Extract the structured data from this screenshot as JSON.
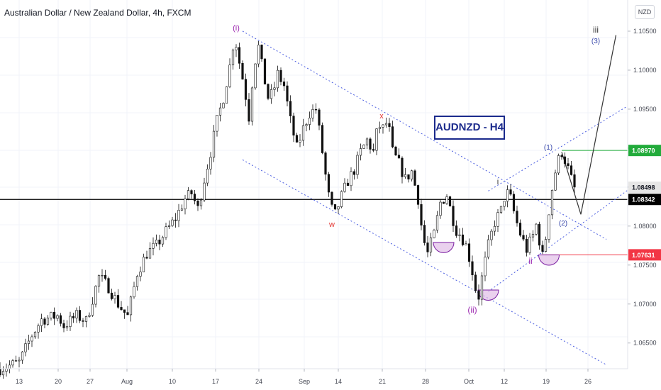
{
  "header": {
    "title": "Australian Dollar / New Zealand Dollar, 4h, FXCM",
    "currency": "NZD"
  },
  "annotation_box": "AUDNZD - H4",
  "chart_data": {
    "type": "candlestick",
    "symbol": "AUDNZD",
    "timeframe": "4h",
    "ylim": [
      1.0617,
      1.109
    ],
    "y_ticks": [
      "1.10500",
      "1.10000",
      "1.09500",
      "1.09000",
      "1.08500",
      "1.08000",
      "1.07500",
      "1.07000",
      "1.06500"
    ],
    "x_ticks": [
      "13",
      "20",
      "27",
      "Aug",
      "10",
      "17",
      "24",
      "Sep",
      "14",
      "21",
      "28",
      "Oct",
      "12",
      "19",
      "26"
    ],
    "price_labels": [
      {
        "label": "1.08970",
        "value": 1.0897,
        "color": "#22ab3b"
      },
      {
        "label": "1.08498",
        "value": 1.08498,
        "color": "#e6e6e6"
      },
      {
        "label": "1.08342",
        "value": 1.08342,
        "color": "#000000"
      },
      {
        "label": "1.07631",
        "value": 1.07631,
        "color": "#f23645"
      }
    ],
    "wave_labels": [
      {
        "text": "(i)",
        "color": "#9c27b0"
      },
      {
        "text": "x",
        "color": "#e53935"
      },
      {
        "text": "w",
        "color": "#e53935"
      },
      {
        "text": "(ii)",
        "color": "#9c27b0"
      },
      {
        "text": "i",
        "color": "#333333"
      },
      {
        "text": "ii",
        "color": "#9c27b0"
      },
      {
        "text": "(1)",
        "color": "#3949ab"
      },
      {
        "text": "(2)",
        "color": "#3949ab"
      },
      {
        "text": "iii",
        "color": "#333333"
      },
      {
        "text": "(3)",
        "color": "#3949ab"
      }
    ],
    "price_path": [
      [
        0,
        1.0617
      ],
      [
        6,
        1.0625
      ],
      [
        10,
        1.066
      ],
      [
        13,
        1.068
      ],
      [
        18,
        1.0685
      ],
      [
        20,
        1.0672
      ],
      [
        24,
        1.0685
      ],
      [
        27,
        1.0678
      ],
      [
        31,
        1.0735
      ],
      [
        34,
        1.0722
      ],
      [
        37,
        1.07
      ],
      [
        40,
        1.0684
      ],
      [
        43,
        1.074
      ],
      [
        46,
        1.0765
      ],
      [
        49,
        1.0775
      ],
      [
        52,
        1.0793
      ],
      [
        55,
        1.081
      ],
      [
        58,
        1.0835
      ],
      [
        60,
        1.0842
      ],
      [
        62,
        1.0822
      ],
      [
        64,
        1.086
      ],
      [
        66,
        1.0895
      ],
      [
        68,
        1.0935
      ],
      [
        70,
        1.0965
      ],
      [
        72,
        1.1005
      ],
      [
        73.5,
        1.1045
      ],
      [
        75,
        1.101
      ],
      [
        76.5,
        1.098
      ],
      [
        78,
        1.094
      ],
      [
        79.5,
        1.1005
      ],
      [
        81,
        1.103
      ],
      [
        82.5,
        1.0995
      ],
      [
        84,
        1.0965
      ],
      [
        85.5,
        1.097
      ],
      [
        87,
        1.0995
      ],
      [
        89,
        1.098
      ],
      [
        91,
        1.0935
      ],
      [
        93,
        1.09
      ],
      [
        95,
        1.0925
      ],
      [
        97,
        1.0945
      ],
      [
        99,
        1.095
      ],
      [
        100.5,
        1.091
      ],
      [
        102,
        1.0865
      ],
      [
        103.5,
        1.0825
      ],
      [
        105,
        1.0815
      ],
      [
        107,
        1.0838
      ],
      [
        109,
        1.0858
      ],
      [
        111,
        1.0872
      ],
      [
        113,
        1.0895
      ],
      [
        115,
        1.091
      ],
      [
        117,
        1.0895
      ],
      [
        118.5,
        1.093
      ],
      [
        120,
        1.0925
      ],
      [
        121.5,
        1.0935
      ],
      [
        123,
        1.0895
      ],
      [
        125,
        1.088
      ],
      [
        127,
        1.086
      ],
      [
        129,
        1.087
      ],
      [
        131,
        1.0835
      ],
      [
        132.5,
        1.0785
      ],
      [
        134,
        1.0765
      ],
      [
        136,
        1.079
      ],
      [
        138,
        1.083
      ],
      [
        140,
        1.084
      ],
      [
        141.5,
        1.0815
      ],
      [
        143,
        1.0795
      ],
      [
        144.5,
        1.0788
      ],
      [
        146,
        1.0775
      ],
      [
        147.5,
        1.0752
      ],
      [
        149,
        1.072
      ],
      [
        150,
        1.071
      ],
      [
        151.5,
        1.0745
      ],
      [
        153,
        1.0775
      ],
      [
        155,
        1.0805
      ],
      [
        157,
        1.082
      ],
      [
        158.5,
        1.0845
      ],
      [
        160,
        1.0835
      ],
      [
        161.5,
        1.081
      ],
      [
        163,
        1.079
      ],
      [
        165,
        1.077
      ],
      [
        167,
        1.0788
      ],
      [
        168.5,
        1.0808
      ],
      [
        169.5,
        1.0755
      ],
      [
        170.5,
        1.0768
      ],
      [
        172,
        1.082
      ],
      [
        173.5,
        1.0862
      ],
      [
        175,
        1.0885
      ],
      [
        176,
        1.0895
      ],
      [
        177.5,
        1.088
      ],
      [
        179,
        1.086
      ],
      [
        180,
        1.0848
      ]
    ],
    "lines": [
      {
        "name": "horizontal",
        "from": [
          0,
          1.08342
        ],
        "to": [
          205,
          1.08342
        ],
        "color": "#000000",
        "width": 1.2
      },
      {
        "name": "horizontal",
        "from": [
          176,
          1.0897
        ],
        "to": [
          202,
          1.0897
        ],
        "color": "#22ab3b",
        "width": 1
      },
      {
        "name": "horizontal",
        "from": [
          170,
          1.07631
        ],
        "to": [
          202,
          1.07631
        ],
        "color": "#f23645",
        "width": 1
      },
      {
        "name": "channel",
        "from": [
          76,
          1.105
        ],
        "to": [
          190,
          1.0783
        ],
        "color": "#4a5de0",
        "dash": "2 3"
      },
      {
        "name": "channel",
        "from": [
          76,
          1.0885
        ],
        "to": [
          190,
          1.0622
        ],
        "color": "#4a5de0",
        "dash": "2 3"
      },
      {
        "name": "channel",
        "from": [
          153,
          1.0716
        ],
        "to": [
          202,
          1.0846
        ],
        "color": "#4a5de0",
        "dash": "2 3"
      },
      {
        "name": "channel",
        "from": [
          153,
          1.0845
        ],
        "to": [
          202,
          1.0954
        ],
        "color": "#4a5de0",
        "dash": "2 3"
      },
      {
        "name": "projection",
        "points": [
          [
            176,
            1.0895
          ],
          [
            182,
            1.0815
          ],
          [
            193,
            1.1045
          ]
        ],
        "color": "#333333",
        "width": 1.2
      }
    ],
    "arcs": [
      {
        "name": "arc",
        "center": [
          139,
          1.0779
        ],
        "r": 10
      },
      {
        "name": "arc",
        "center": [
          153,
          1.0718
        ],
        "r": 10
      },
      {
        "name": "arc",
        "center": [
          172,
          1.0763
        ],
        "r": 10
      }
    ]
  }
}
